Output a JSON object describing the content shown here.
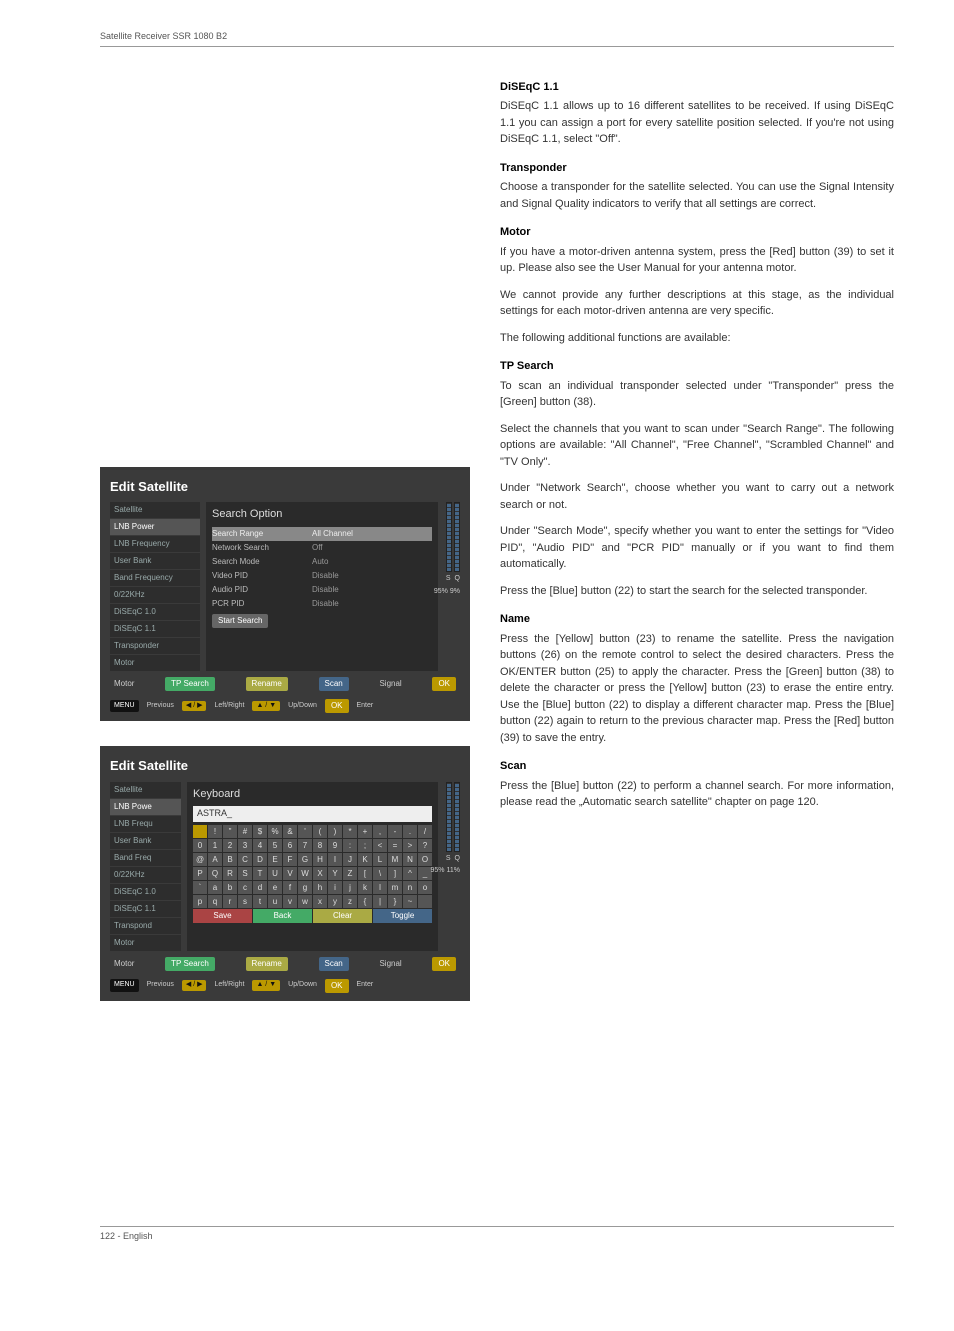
{
  "header": {
    "title": "Satellite Receiver SSR 1080 B2"
  },
  "footer": {
    "text": "122  -  English"
  },
  "sections": {
    "diseqc11": {
      "heading": "DiSEqC 1.1",
      "body": "DiSEqC 1.1 allows up to 16 different satellites to be received. If using DiSEqC 1.1 you can assign a port for every satellite position selected. If you're not using DiSEqC 1.1, select \"Off\"."
    },
    "transponder": {
      "heading": "Transponder",
      "body": "Choose a transponder for the satellite selected. You can use the Signal Intensity and Signal Quality indicators to verify that all settings are correct."
    },
    "motor": {
      "heading": "Motor",
      "body1": "If you have a motor-driven antenna system, press the [Red] button (39) to set it up. Please also see the User Manual for your antenna motor.",
      "body2": "We cannot provide any further descriptions at this stage, as the individual settings for each motor-driven antenna are very specific.",
      "body3": "The following additional functions are available:"
    },
    "tpsearch": {
      "heading": "TP Search",
      "body1": "To scan an individual transponder selected under \"Transponder\" press the [Green] button (38).",
      "body2": "Select the channels that you want to scan under \"Search Range\". The following options are available: \"All Channel\", \"Free Channel\", \"Scrambled Channel\" and \"TV Only\".",
      "body3": "Under \"Network Search\", choose whether you want to carry out a network search or not.",
      "body4": "Under \"Search Mode\", specify whether you want to enter the settings for \"Video PID\", \"Audio PID\" and \"PCR PID\" manually or if you want to find them automatically.",
      "body5": "Press the [Blue] button (22) to start the search for the selected transponder."
    },
    "name": {
      "heading": "Name",
      "body": "Press the [Yellow] button (23) to rename the satellite. Press the navigation buttons (26) on the remote control to select the desired characters. Press the OK/ENTER button (25) to apply the character. Press the [Green] button (38) to delete the character or press the [Yellow] button (23) to erase the entire entry. Use the [Blue] button (22) to display a different character map. Press the [Blue] button (22) again to return to the previous character map. Press the [Red] button (39) to save the entry."
    },
    "scan": {
      "heading": "Scan",
      "body": "Press the [Blue] button (22) to perform a channel search. For more information, please read the „Automatic search satellite\" chapter on page 120."
    }
  },
  "shot1": {
    "title": "Edit Satellite",
    "side": [
      "Satellite",
      "LNB Power",
      "LNB Frequency",
      "User Bank",
      "Band Frequency",
      "0/22KHz",
      "DiSEqC 1.0",
      "DiSEqC 1.1",
      "Transponder",
      "Motor"
    ],
    "main_title": "Search Option",
    "rows": [
      {
        "label": "Search Range",
        "val": "All Channel",
        "hl": true
      },
      {
        "label": "Network Search",
        "val": "Off"
      },
      {
        "label": "Search Mode",
        "val": "Auto"
      },
      {
        "label": "Video PID",
        "val": "Disable"
      },
      {
        "label": "Audio PID",
        "val": "Disable"
      },
      {
        "label": "PCR PID",
        "val": "Disable"
      }
    ],
    "start": "Start Search",
    "sig": {
      "s": "S",
      "q": "Q",
      "sp": "95%",
      "qp": "9%",
      "signal": "Signal",
      "ok": "OK"
    },
    "bottom": {
      "motor": "Motor",
      "tp": "TP Search",
      "rename": "Rename",
      "scan": "Scan"
    },
    "help": {
      "menu": "MENU",
      "prev": "Previous",
      "lr": "Left/Right",
      "ud": "Up/Down",
      "ok": "OK",
      "enter": "Enter"
    }
  },
  "shot2": {
    "title": "Edit Satellite",
    "side": [
      "Satellite",
      "LNB Powe",
      "LNB Frequ",
      "User Bank",
      "Band Freq",
      "0/22KHz",
      "DiSEqC 1.0",
      "DiSEqC 1.1",
      "Transpond",
      "Motor"
    ],
    "main_title": "Keyboard",
    "input": "ASTRA_",
    "keys_r1": [
      "",
      "!",
      "\"",
      "#",
      "$",
      "%",
      "&",
      "'",
      "(",
      ")",
      "*",
      "+",
      ",",
      "-",
      ".",
      "/"
    ],
    "keys_r2": [
      "0",
      "1",
      "2",
      "3",
      "4",
      "5",
      "6",
      "7",
      "8",
      "9",
      ":",
      ";",
      "<",
      "=",
      ">",
      "?"
    ],
    "keys_r3": [
      "@",
      "A",
      "B",
      "C",
      "D",
      "E",
      "F",
      "G",
      "H",
      "I",
      "J",
      "K",
      "L",
      "M",
      "N",
      "O"
    ],
    "keys_r4": [
      "P",
      "Q",
      "R",
      "S",
      "T",
      "U",
      "V",
      "W",
      "X",
      "Y",
      "Z",
      "[",
      "\\",
      "]",
      "^",
      "_"
    ],
    "keys_r5": [
      "`",
      "a",
      "b",
      "c",
      "d",
      "e",
      "f",
      "g",
      "h",
      "i",
      "j",
      "k",
      "l",
      "m",
      "n",
      "o"
    ],
    "keys_r6": [
      "p",
      "q",
      "r",
      "s",
      "t",
      "u",
      "v",
      "w",
      "x",
      "y",
      "z",
      "{",
      "|",
      "}",
      "~",
      ""
    ],
    "actions": {
      "save": "Save",
      "back": "Back",
      "clear": "Clear",
      "toggle": "Toggle"
    },
    "sig": {
      "s": "S",
      "q": "Q",
      "sp": "95%",
      "qp": "11%",
      "signal": "Signal",
      "ok": "OK"
    },
    "bottom": {
      "motor": "Motor",
      "tp": "TP Search",
      "rename": "Rename",
      "scan": "Scan"
    },
    "help": {
      "menu": "MENU",
      "prev": "Previous",
      "lr": "Left/Right",
      "ud": "Up/Down",
      "ok": "OK",
      "enter": "Enter"
    }
  }
}
